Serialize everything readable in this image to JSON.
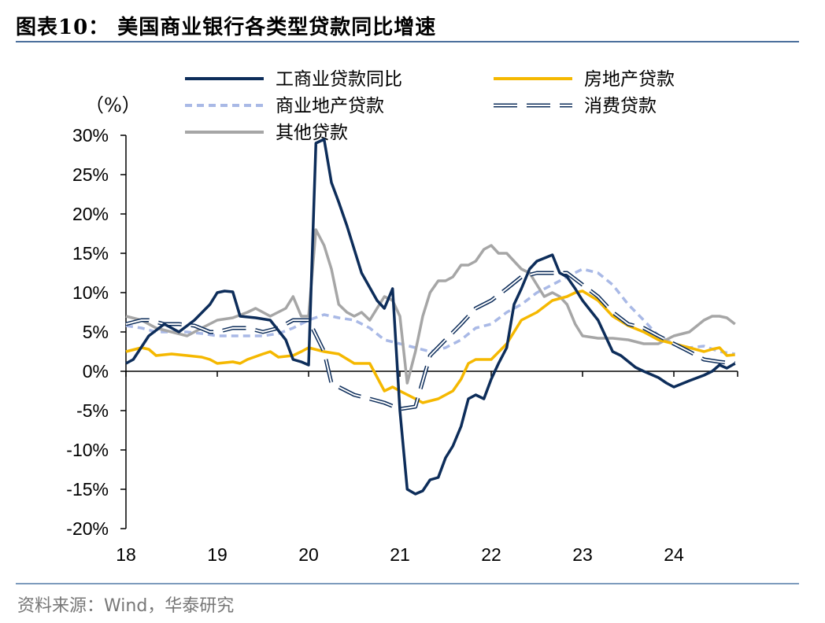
{
  "header": {
    "title": "图表10：  美国商业银行各类型贷款同比增速"
  },
  "footer": {
    "source": "资料来源：Wind，华泰研究"
  },
  "chart_data": {
    "type": "line",
    "unit_label": "（%）",
    "ylim": [
      -20,
      30
    ],
    "yticks": [
      "30%",
      "25%",
      "20%",
      "15%",
      "10%",
      "5%",
      "0%",
      "-5%",
      "-10%",
      "-15%",
      "-20%"
    ],
    "ytick_values": [
      30,
      25,
      20,
      15,
      10,
      5,
      0,
      -5,
      -10,
      -15,
      -20
    ],
    "xlim": [
      2018,
      2024.7
    ],
    "xticks": [
      "18",
      "19",
      "20",
      "21",
      "22",
      "23",
      "24"
    ],
    "xtick_values": [
      2018,
      2019,
      2020,
      2021,
      2022,
      2023,
      2024
    ],
    "legend_position": "top",
    "series": [
      {
        "name": "工商业贷款同比",
        "color": "#0d2d5a",
        "style": "solid",
        "x": [
          2018.0,
          2018.08,
          2018.25,
          2018.42,
          2018.58,
          2018.75,
          2018.92,
          2019.0,
          2019.08,
          2019.17,
          2019.25,
          2019.42,
          2019.58,
          2019.75,
          2019.83,
          2019.92,
          2020.0,
          2020.08,
          2020.17,
          2020.25,
          2020.33,
          2020.42,
          2020.58,
          2020.75,
          2020.83,
          2020.92,
          2021.0,
          2021.08,
          2021.17,
          2021.25,
          2021.33,
          2021.42,
          2021.5,
          2021.58,
          2021.67,
          2021.75,
          2021.83,
          2021.92,
          2022.0,
          2022.08,
          2022.17,
          2022.25,
          2022.33,
          2022.42,
          2022.5,
          2022.67,
          2022.75,
          2022.83,
          2022.92,
          2023.0,
          2023.17,
          2023.33,
          2023.42,
          2023.58,
          2023.67,
          2023.83,
          2023.92,
          2024.0,
          2024.17,
          2024.33,
          2024.42,
          2024.5,
          2024.58,
          2024.67
        ],
        "values": [
          1.0,
          1.5,
          4.5,
          6.0,
          5.0,
          6.5,
          8.5,
          10.0,
          10.2,
          10.1,
          7.0,
          6.8,
          6.5,
          4.0,
          1.5,
          1.2,
          0.8,
          29.0,
          29.5,
          24.0,
          21.5,
          18.5,
          12.5,
          9.0,
          8.0,
          10.5,
          -5.0,
          -15.0,
          -15.6,
          -15.2,
          -13.8,
          -13.5,
          -11.0,
          -9.5,
          -7.0,
          -3.5,
          -3.0,
          -3.5,
          -1.0,
          1.0,
          3.0,
          8.5,
          10.5,
          13.0,
          14.0,
          14.8,
          12.5,
          12.0,
          10.5,
          9.0,
          6.5,
          2.5,
          2.0,
          0.5,
          0.0,
          -0.8,
          -1.5,
          -2.0,
          -1.2,
          -0.5,
          0.0,
          0.8,
          0.4,
          1.0
        ]
      },
      {
        "name": "房地产贷款",
        "color": "#f5b800",
        "style": "solid",
        "x": [
          2018.0,
          2018.17,
          2018.25,
          2018.33,
          2018.5,
          2018.67,
          2018.83,
          2018.92,
          2019.0,
          2019.17,
          2019.25,
          2019.33,
          2019.5,
          2019.58,
          2019.67,
          2019.83,
          2019.92,
          2020.0,
          2020.17,
          2020.33,
          2020.5,
          2020.67,
          2020.83,
          2020.92,
          2021.0,
          2021.17,
          2021.25,
          2021.42,
          2021.58,
          2021.67,
          2021.75,
          2021.83,
          2021.92,
          2022.0,
          2022.17,
          2022.33,
          2022.5,
          2022.67,
          2022.83,
          2022.92,
          2023.0,
          2023.17,
          2023.33,
          2023.5,
          2023.67,
          2023.83,
          2024.0,
          2024.17,
          2024.33,
          2024.42,
          2024.5,
          2024.58,
          2024.67
        ],
        "values": [
          2.5,
          3.0,
          2.8,
          2.0,
          2.2,
          2.0,
          1.8,
          1.5,
          1.0,
          1.2,
          1.0,
          1.5,
          2.2,
          2.5,
          1.8,
          2.0,
          2.5,
          3.0,
          2.5,
          2.2,
          1.0,
          1.0,
          -2.5,
          -2.0,
          -2.5,
          -3.5,
          -4.0,
          -3.5,
          -2.5,
          -1.0,
          1.0,
          1.5,
          1.5,
          1.5,
          3.5,
          6.5,
          7.5,
          9.0,
          9.5,
          10.0,
          10.2,
          9.0,
          7.0,
          5.8,
          5.0,
          4.0,
          3.5,
          3.0,
          2.5,
          2.8,
          3.0,
          2.0,
          2.1
        ]
      },
      {
        "name": "商业地产贷款",
        "color": "#a9b9e6",
        "style": "dashed",
        "x": [
          2018.0,
          2018.17,
          2018.33,
          2018.5,
          2018.67,
          2018.83,
          2019.0,
          2019.17,
          2019.33,
          2019.5,
          2019.67,
          2019.83,
          2020.0,
          2020.17,
          2020.33,
          2020.5,
          2020.67,
          2020.83,
          2021.0,
          2021.17,
          2021.33,
          2021.5,
          2021.67,
          2021.83,
          2022.0,
          2022.17,
          2022.33,
          2022.5,
          2022.67,
          2022.83,
          2023.0,
          2023.17,
          2023.33,
          2023.5,
          2023.67,
          2023.83,
          2024.0,
          2024.17,
          2024.33,
          2024.5,
          2024.67
        ],
        "values": [
          5.8,
          5.5,
          5.0,
          5.0,
          5.0,
          4.8,
          4.5,
          4.5,
          4.5,
          4.5,
          4.8,
          5.5,
          6.5,
          7.2,
          6.8,
          6.5,
          5.5,
          4.0,
          3.5,
          3.0,
          2.5,
          3.0,
          4.0,
          5.5,
          6.0,
          7.5,
          8.5,
          10.0,
          11.0,
          12.0,
          13.0,
          12.5,
          11.0,
          8.5,
          6.5,
          4.5,
          3.5,
          3.0,
          3.2,
          2.5,
          2.2
        ]
      },
      {
        "name": "消费贷款",
        "color": "#0d2d5a",
        "style": "dashed-outline",
        "x": [
          2018.0,
          2018.17,
          2018.25,
          2018.42,
          2018.58,
          2018.75,
          2018.92,
          2019.0,
          2019.17,
          2019.33,
          2019.5,
          2019.67,
          2019.83,
          2020.0,
          2020.17,
          2020.25,
          2020.33,
          2020.5,
          2020.67,
          2020.83,
          2021.0,
          2021.17,
          2021.33,
          2021.5,
          2021.67,
          2021.83,
          2022.0,
          2022.17,
          2022.33,
          2022.5,
          2022.67,
          2022.83,
          2023.0,
          2023.17,
          2023.33,
          2023.5,
          2023.67,
          2023.83,
          2024.0,
          2024.17,
          2024.33,
          2024.5,
          2024.67
        ],
        "values": [
          6.0,
          6.5,
          6.5,
          6.0,
          6.0,
          5.8,
          5.0,
          5.0,
          5.5,
          5.5,
          5.0,
          5.5,
          6.5,
          6.5,
          2.5,
          -1.5,
          -2.0,
          -3.0,
          -3.5,
          -4.0,
          -4.8,
          -4.5,
          2.0,
          4.0,
          6.0,
          8.0,
          9.0,
          10.5,
          12.0,
          12.5,
          12.5,
          12.5,
          11.0,
          9.5,
          7.5,
          6.0,
          5.5,
          4.5,
          3.5,
          2.5,
          1.5,
          1.2,
          1.0
        ]
      },
      {
        "name": "其他贷款",
        "color": "#a6a6a6",
        "style": "solid",
        "x": [
          2018.0,
          2018.17,
          2018.33,
          2018.5,
          2018.67,
          2018.83,
          2019.0,
          2019.17,
          2019.33,
          2019.42,
          2019.58,
          2019.75,
          2019.83,
          2019.92,
          2020.0,
          2020.08,
          2020.17,
          2020.25,
          2020.33,
          2020.42,
          2020.5,
          2020.58,
          2020.67,
          2020.75,
          2020.83,
          2020.92,
          2021.0,
          2021.08,
          2021.17,
          2021.25,
          2021.33,
          2021.42,
          2021.5,
          2021.58,
          2021.67,
          2021.75,
          2021.83,
          2021.92,
          2022.0,
          2022.08,
          2022.17,
          2022.25,
          2022.33,
          2022.42,
          2022.5,
          2022.58,
          2022.67,
          2022.75,
          2022.83,
          2022.92,
          2023.0,
          2023.17,
          2023.33,
          2023.5,
          2023.67,
          2023.83,
          2024.0,
          2024.17,
          2024.33,
          2024.42,
          2024.5,
          2024.58,
          2024.67
        ],
        "values": [
          7.0,
          6.5,
          5.5,
          5.0,
          4.5,
          5.5,
          6.5,
          6.8,
          7.5,
          8.0,
          7.0,
          8.0,
          9.5,
          7.0,
          7.0,
          18.0,
          16.0,
          13.0,
          8.5,
          7.5,
          7.0,
          7.5,
          6.5,
          8.0,
          9.5,
          9.0,
          7.0,
          -1.5,
          2.5,
          7.0,
          10.0,
          11.5,
          11.5,
          12.0,
          13.5,
          13.5,
          14.0,
          15.5,
          16.0,
          15.0,
          15.0,
          14.0,
          13.0,
          12.5,
          11.0,
          9.5,
          10.0,
          9.5,
          8.5,
          6.0,
          4.5,
          4.2,
          4.2,
          4.0,
          3.5,
          3.5,
          4.5,
          5.0,
          6.5,
          7.0,
          7.0,
          6.8,
          6.0
        ]
      }
    ]
  }
}
